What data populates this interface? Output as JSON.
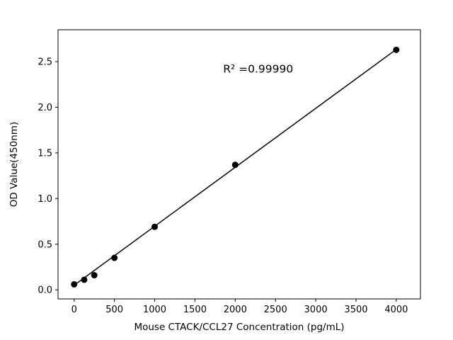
{
  "chart_data": {
    "type": "scatter",
    "title": "",
    "xlabel": "Mouse CTACK/CCL27 Concentration (pg/mL)",
    "ylabel": "OD Value(450nm)",
    "x": [
      0,
      125,
      250,
      500,
      1000,
      2000,
      4000
    ],
    "y": [
      0.06,
      0.11,
      0.16,
      0.35,
      0.69,
      1.37,
      2.63
    ],
    "fit_line": {
      "x": [
        0,
        4000
      ],
      "y": [
        0.05,
        2.635
      ]
    },
    "xlim": [
      -200,
      4300
    ],
    "ylim": [
      -0.1,
      2.85
    ],
    "xticks": [
      0,
      500,
      1000,
      1500,
      2000,
      2500,
      3000,
      3500,
      4000
    ],
    "xtick_labels": [
      "0",
      "500",
      "1000",
      "1500",
      "2000",
      "2500",
      "3000",
      "3500",
      "4000"
    ],
    "yticks": [
      0.0,
      0.5,
      1.0,
      1.5,
      2.0,
      2.5
    ],
    "ytick_labels": [
      "0.0",
      "0.5",
      "1.0",
      "1.5",
      "2.0",
      "2.5"
    ],
    "annotation": {
      "text": "R² =0.99990",
      "x": 1850,
      "y": 2.38
    },
    "grid": false,
    "legend": null,
    "marker_color": "#000000",
    "line_color": "#000000",
    "axis_color": "#000000",
    "background_color": "#ffffff"
  }
}
